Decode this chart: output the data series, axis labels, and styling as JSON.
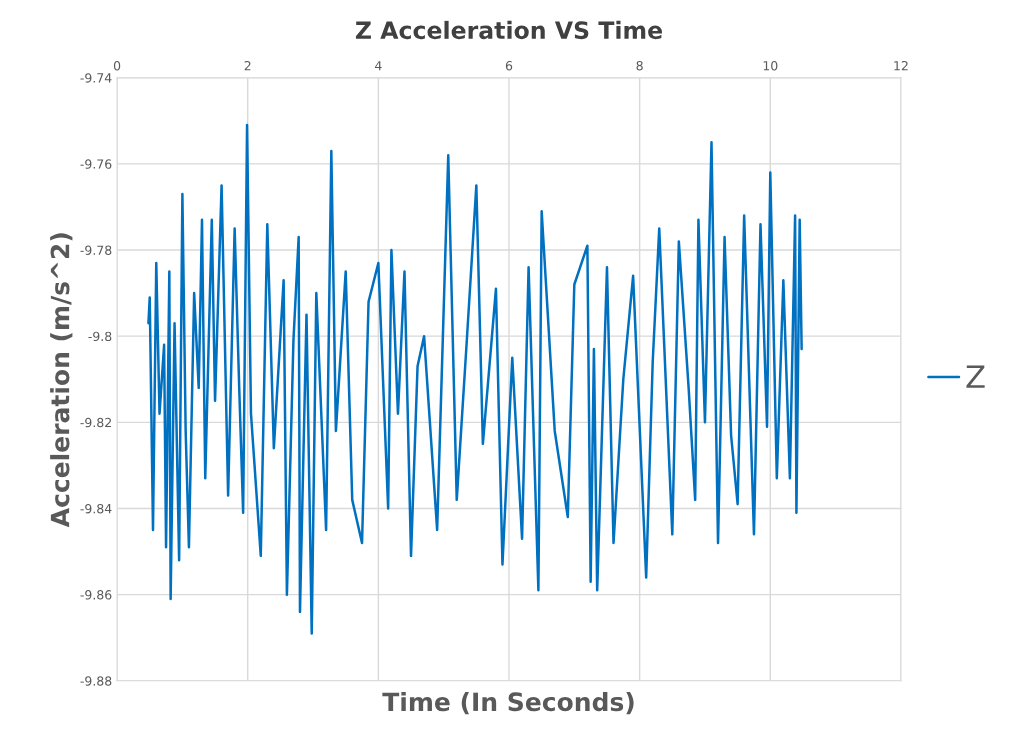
{
  "chart_data": {
    "type": "line",
    "title": "Z Acceleration VS Time",
    "xlabel": "Time (In Seconds)",
    "ylabel": "Acceleration (m/s^2)",
    "xlim": [
      0,
      12
    ],
    "xticks": [
      0,
      2,
      4,
      6,
      8,
      10,
      12
    ],
    "ylim": [
      -9.88,
      -9.74
    ],
    "yticks": [
      -9.88,
      -9.86,
      -9.84,
      -9.82,
      -9.8,
      -9.78,
      -9.76,
      -9.74
    ],
    "grid": true,
    "legend": "right",
    "marker": "none",
    "line_style": "solid",
    "series": [
      {
        "name": "Z",
        "color": "#0070c0",
        "x": [
          0.48,
          0.5,
          0.55,
          0.6,
          0.65,
          0.72,
          0.75,
          0.8,
          0.82,
          0.88,
          0.95,
          1.0,
          1.05,
          1.1,
          1.18,
          1.25,
          1.3,
          1.35,
          1.45,
          1.5,
          1.6,
          1.7,
          1.8,
          1.87,
          1.93,
          1.99,
          2.05,
          2.2,
          2.3,
          2.4,
          2.55,
          2.6,
          2.7,
          2.78,
          2.8,
          2.9,
          2.98,
          3.05,
          3.2,
          3.28,
          3.35,
          3.5,
          3.6,
          3.75,
          3.85,
          4.0,
          4.15,
          4.2,
          4.3,
          4.4,
          4.5,
          4.6,
          4.7,
          4.9,
          5.07,
          5.2,
          5.35,
          5.5,
          5.6,
          5.8,
          5.9,
          6.05,
          6.2,
          6.3,
          6.45,
          6.5,
          6.7,
          6.9,
          7.0,
          7.2,
          7.25,
          7.3,
          7.35,
          7.5,
          7.6,
          7.75,
          7.9,
          8.1,
          8.2,
          8.3,
          8.5,
          8.6,
          8.75,
          8.85,
          8.9,
          9.0,
          9.1,
          9.2,
          9.3,
          9.4,
          9.5,
          9.6,
          9.75,
          9.85,
          9.95,
          10.0,
          10.1,
          10.2,
          10.3,
          10.38,
          10.4,
          10.45,
          10.48
        ],
        "values": [
          -9.797,
          -9.791,
          -9.845,
          -9.783,
          -9.818,
          -9.802,
          -9.849,
          -9.785,
          -9.861,
          -9.797,
          -9.852,
          -9.767,
          -9.822,
          -9.849,
          -9.79,
          -9.812,
          -9.773,
          -9.833,
          -9.773,
          -9.815,
          -9.765,
          -9.837,
          -9.775,
          -9.812,
          -9.841,
          -9.751,
          -9.818,
          -9.851,
          -9.774,
          -9.826,
          -9.787,
          -9.86,
          -9.801,
          -9.777,
          -9.864,
          -9.795,
          -9.869,
          -9.79,
          -9.845,
          -9.757,
          -9.822,
          -9.785,
          -9.838,
          -9.848,
          -9.792,
          -9.783,
          -9.84,
          -9.78,
          -9.818,
          -9.785,
          -9.851,
          -9.807,
          -9.8,
          -9.845,
          -9.758,
          -9.838,
          -9.802,
          -9.765,
          -9.825,
          -9.789,
          -9.853,
          -9.805,
          -9.847,
          -9.784,
          -9.859,
          -9.771,
          -9.822,
          -9.842,
          -9.788,
          -9.779,
          -9.857,
          -9.803,
          -9.859,
          -9.784,
          -9.848,
          -9.81,
          -9.786,
          -9.856,
          -9.806,
          -9.775,
          -9.846,
          -9.778,
          -9.812,
          -9.838,
          -9.773,
          -9.82,
          -9.755,
          -9.848,
          -9.777,
          -9.823,
          -9.839,
          -9.772,
          -9.846,
          -9.774,
          -9.821,
          -9.762,
          -9.833,
          -9.787,
          -9.833,
          -9.772,
          -9.841,
          -9.773,
          -9.803
        ]
      }
    ]
  }
}
